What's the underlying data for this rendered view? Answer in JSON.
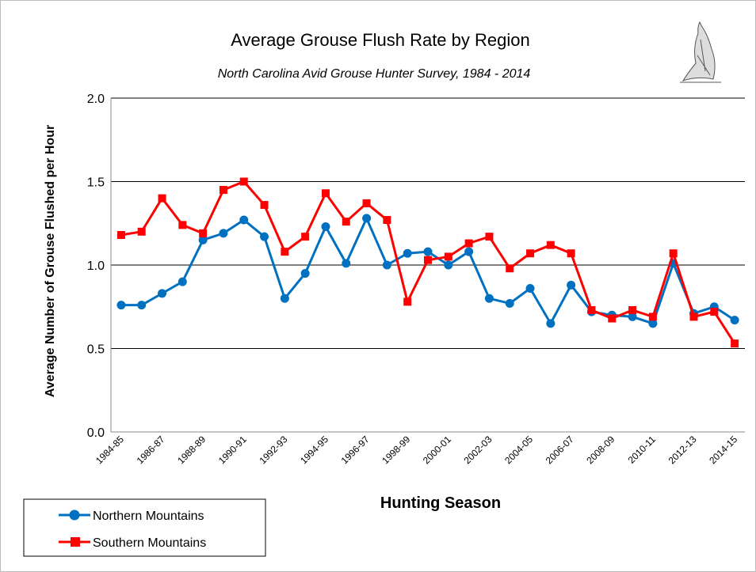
{
  "chart_data": {
    "type": "line",
    "title": "Average Grouse Flush Rate by Region",
    "subtitle": "North Carolina Avid Grouse Hunter Survey, 1984 - 2014",
    "x_label": "Hunting Season",
    "y_label": "Average Number of Grouse Flushed per Hour",
    "categories": [
      "1984-85",
      null,
      "1986-87",
      null,
      "1988-89",
      null,
      "1990-91",
      null,
      "1992-93",
      null,
      "1994-95",
      null,
      "1996-97",
      null,
      "1998-99",
      null,
      "2000-01",
      null,
      "2002-03",
      null,
      "2004-05",
      null,
      "2006-07",
      null,
      "2008-09",
      null,
      "2010-11",
      null,
      "2012-13",
      null,
      "2014-15"
    ],
    "series": [
      {
        "name": "Northern Mountains",
        "color": "#0070c0",
        "marker": "circle",
        "values": [
          0.76,
          0.76,
          0.83,
          0.9,
          1.15,
          1.19,
          1.27,
          1.17,
          0.8,
          0.95,
          1.23,
          1.01,
          1.28,
          1.0,
          1.07,
          1.08,
          1.0,
          1.08,
          0.8,
          0.77,
          0.86,
          0.65,
          0.88,
          0.72,
          0.7,
          0.69,
          0.65,
          1.01,
          0.71,
          0.75,
          0.67
        ]
      },
      {
        "name": "Southern Mountains",
        "color": "#ff0000",
        "marker": "square",
        "values": [
          1.18,
          1.2,
          1.4,
          1.24,
          1.19,
          1.45,
          1.5,
          1.36,
          1.08,
          1.17,
          1.43,
          1.26,
          1.37,
          1.27,
          0.78,
          1.03,
          1.05,
          1.13,
          1.17,
          0.98,
          1.07,
          1.12,
          1.07,
          0.73,
          0.68,
          0.73,
          0.69,
          1.07,
          0.69,
          0.72,
          0.53
        ]
      }
    ],
    "ylim": [
      0,
      2
    ],
    "yticks": [
      {
        "value": 0,
        "label": "0.0"
      },
      0.5,
      {
        "value": 1,
        "label": "1.0"
      },
      1.5,
      {
        "value": 2,
        "label": "2.0"
      }
    ],
    "grid": true,
    "legend": "bottom-left"
  }
}
